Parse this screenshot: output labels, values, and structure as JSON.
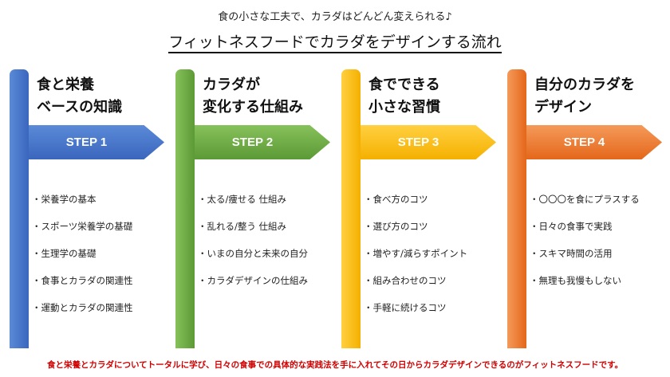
{
  "subtitle": "食の小さな工夫で、カラダはどんどん変えられる♪",
  "title": "フィットネスフードでカラダをデザインする流れ",
  "steps": [
    {
      "heading": [
        "食と栄養",
        "ベースの知識"
      ],
      "label": "STEP 1",
      "color": "#4472c4",
      "items": [
        "・栄養学の基本",
        "・スポーツ栄養学の基礎",
        "・生理学の基礎",
        "・食事とカラダの関連性",
        "・運動とカラダの関連性"
      ]
    },
    {
      "heading": [
        "カラダが",
        "変化する仕組み"
      ],
      "label": "STEP 2",
      "color": "#70ad47",
      "items": [
        "・太る/痩せる 仕組み",
        "・乱れる/整う 仕組み",
        "・いまの自分と未来の自分",
        "・カラダデザインの仕組み"
      ]
    },
    {
      "heading": [
        "食でできる",
        "小さな習慣"
      ],
      "label": "STEP 3",
      "color": "#ffc000",
      "items": [
        "・食べ方のコツ",
        "・選び方のコツ",
        "・増やす/減らすポイント",
        "・組み合わせのコツ",
        "・手軽に続けるコツ"
      ]
    },
    {
      "heading": [
        "自分のカラダを",
        "デザイン"
      ],
      "label": "STEP 4",
      "color": "#ed7d31",
      "items": [
        "・〇〇〇を食にプラスする",
        "・日々の食事で実践",
        "・スキマ時間の活用",
        "・無理も我慢もしない"
      ]
    }
  ],
  "footer": "食と栄養とカラダについてトータルに学び、日々の食事での具体的な実践法を手に入れてその日からカラダデザインできるのがフィットネスフードです。"
}
